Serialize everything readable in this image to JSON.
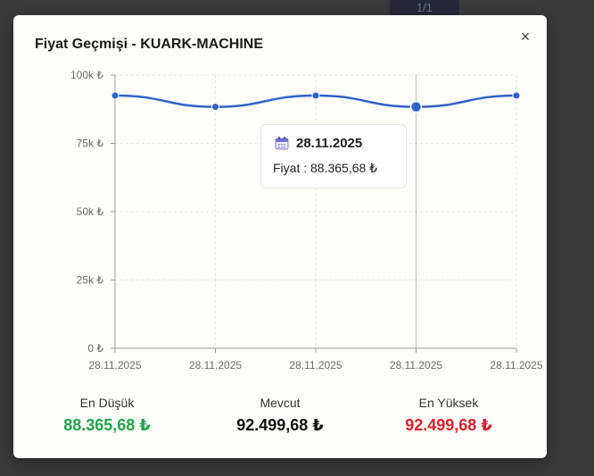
{
  "backdrop": {
    "pager": "1/1"
  },
  "modal": {
    "title": "Fiyat Geçmişi - KUARK-MACHINE",
    "close_symbol": "×"
  },
  "chart_data": {
    "type": "line",
    "x": [
      "28.11.2025",
      "28.11.2025",
      "28.11.2025",
      "28.11.2025",
      "28.11.2025"
    ],
    "values": [
      92499.68,
      88365.68,
      92499.68,
      88365.68,
      92499.68
    ],
    "ylim": [
      0,
      100000
    ],
    "y_ticks": [
      0,
      25000,
      50000,
      75000,
      100000
    ],
    "y_tick_labels": [
      "0 ₺",
      "25k ₺",
      "50k ₺",
      "75k ₺",
      "100k ₺"
    ],
    "grid": true,
    "line_color": "#2f62c9",
    "active_index": 3
  },
  "tooltip": {
    "icon": "calendar-icon",
    "date": "28.11.2025",
    "price_text": "Fiyat : 88.365,68 ₺"
  },
  "stats": {
    "min": {
      "label": "En Düşük",
      "value": "88.365,68 ₺",
      "color": "#1fa34a"
    },
    "current": {
      "label": "Mevcut",
      "value": "92.499,68 ₺",
      "color": "#111111"
    },
    "max": {
      "label": "En Yüksek",
      "value": "92.499,68 ₺",
      "color": "#d81f2a"
    }
  }
}
